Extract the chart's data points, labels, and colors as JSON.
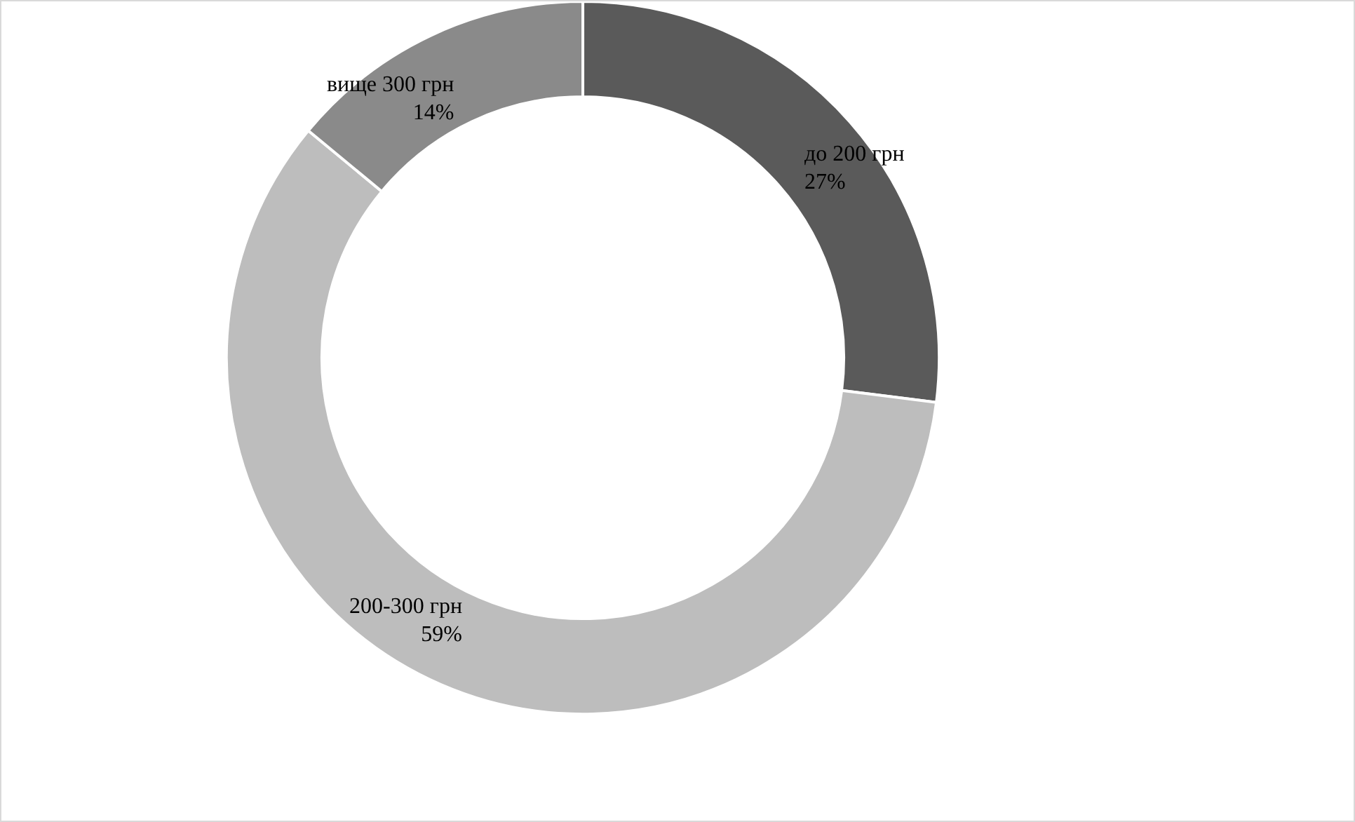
{
  "chart_data": {
    "type": "donut",
    "categories": [
      "до 200 грн",
      "200-300 грн",
      "вище 300 грн"
    ],
    "values": [
      27,
      59,
      14
    ],
    "value_labels": [
      "27%",
      "59%",
      "14%"
    ],
    "colors": [
      "#5a5a5a",
      "#bdbdbd",
      "#8a8a8a"
    ],
    "legend": false
  }
}
